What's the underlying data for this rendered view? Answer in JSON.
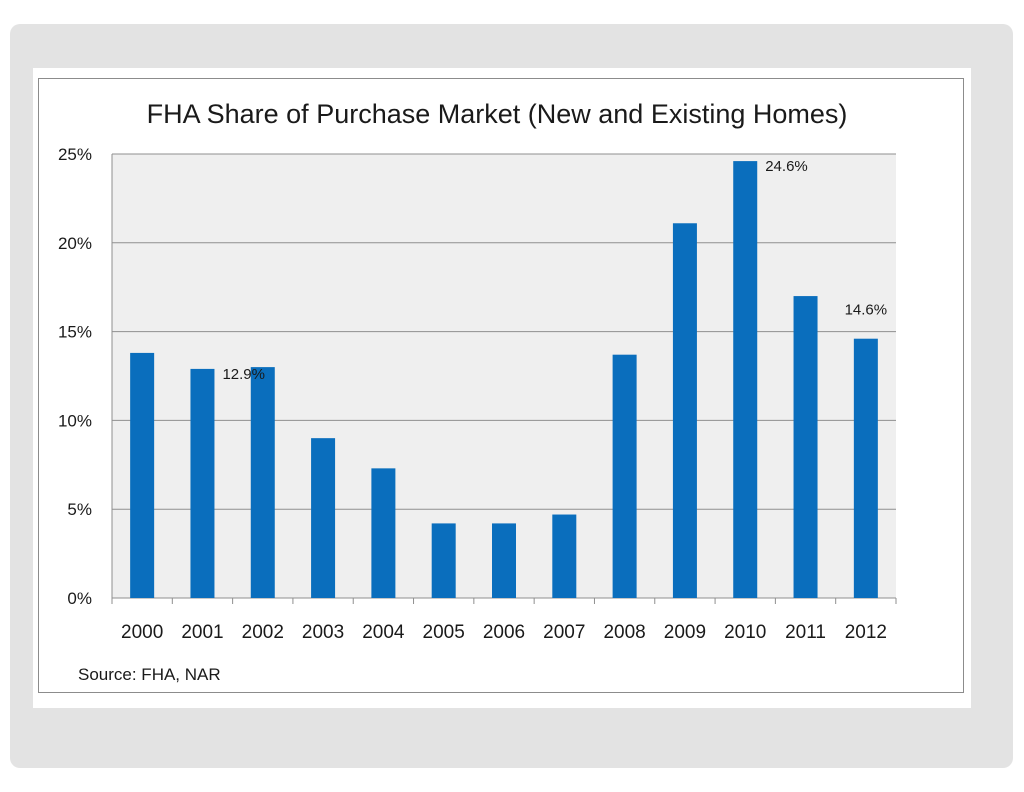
{
  "chart_data": {
    "type": "bar",
    "title": "FHA Share of Purchase Market (New and Existing Homes)",
    "xlabel": "",
    "ylabel": "",
    "categories": [
      "2000",
      "2001",
      "2002",
      "2003",
      "2004",
      "2005",
      "2006",
      "2007",
      "2008",
      "2009",
      "2010",
      "2011",
      "2012"
    ],
    "values": [
      13.8,
      12.9,
      13.0,
      9.0,
      7.3,
      4.2,
      4.2,
      4.7,
      13.7,
      21.1,
      24.6,
      17.0,
      14.6
    ],
    "ylim": [
      0,
      25
    ],
    "yticks": [
      0,
      5,
      10,
      15,
      20,
      25
    ],
    "ytick_labels": [
      "0%",
      "5%",
      "10%",
      "15%",
      "20%",
      "25%"
    ],
    "data_labels": [
      {
        "category": "2001",
        "text": "12.9%"
      },
      {
        "category": "2010",
        "text": "24.6%"
      },
      {
        "category": "2012",
        "text": "14.6%"
      }
    ],
    "grid": true,
    "legend": "none",
    "bar_color": "#0a6ebd",
    "plot_background": "#efefef",
    "source": "Source: FHA, NAR"
  }
}
